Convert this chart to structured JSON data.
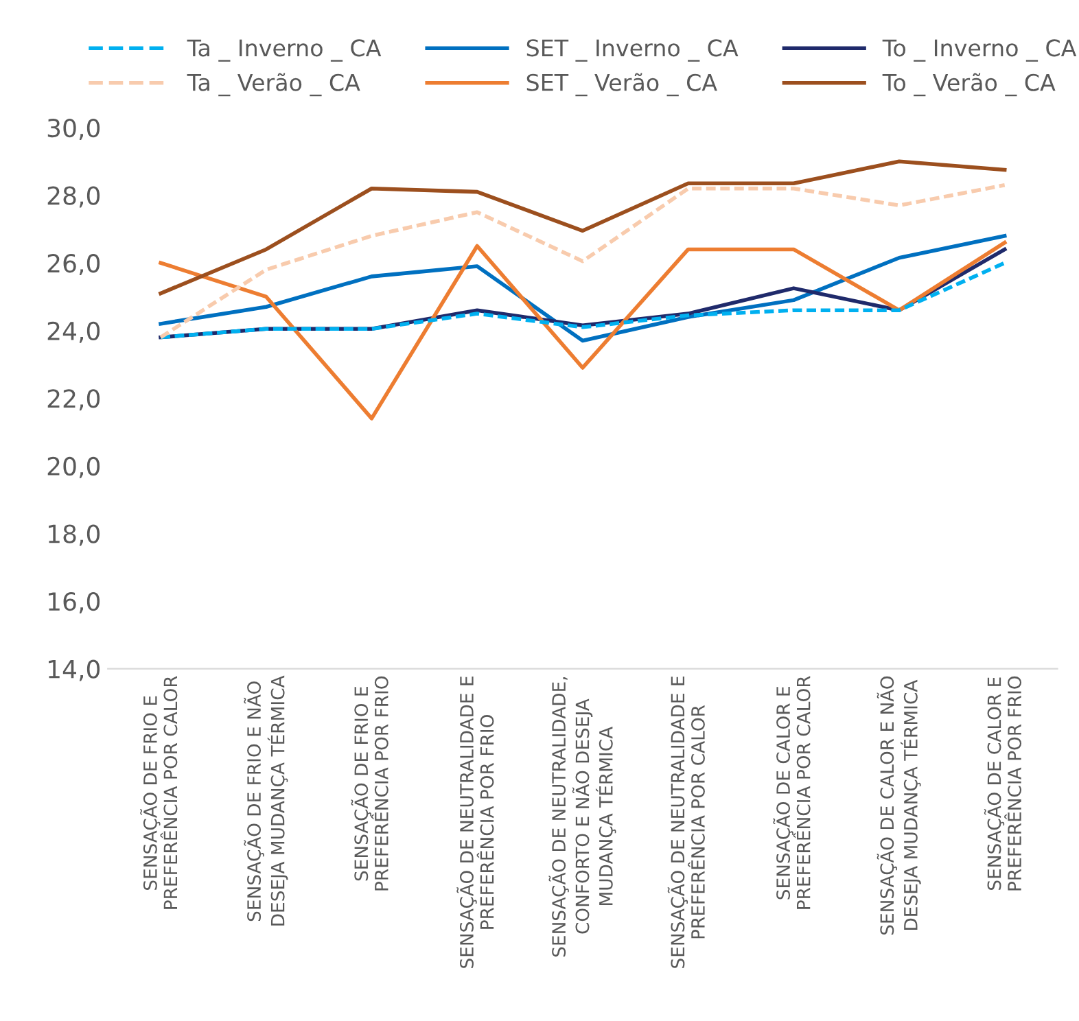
{
  "chart_data": {
    "type": "line",
    "categories": [
      "SENSAÇÃO DE FRIO E\nPREFERÊNCIA POR CALOR",
      "SENSAÇÃO DE FRIO E NÃO\nDESEJA MUDANÇA TÉRMICA",
      "SENSAÇÃO DE FRIO E\nPREFERÊNCIA POR FRIO",
      "SENSAÇÃO DE NEUTRALIDADE E\nPREFERÊNCIA POR FRIO",
      "SENSAÇÃO DE NEUTRALIDADE,\nCONFORTO E NÃO DESEJA\nMUDANÇA TÉRMICA",
      "SENSAÇÃO DE NEUTRALIDADE E\nPREFERÊNCIA POR CALOR",
      "SENSAÇÃO DE CALOR E\nPREFERÊNCIA POR CALOR",
      "SENSAÇÃO DE CALOR E NÃO\nDESEJA MUDANÇA TÉRMICA",
      "SENSAÇÃO DE CALOR E\nPREFERÊNCIA POR FRIO"
    ],
    "series": [
      {
        "name": "Ta _ Inverno _ CA",
        "color": "#00b0f0",
        "line_style": "dashed",
        "values": [
          23.8,
          24.05,
          24.05,
          24.5,
          24.1,
          24.45,
          24.6,
          24.6,
          26.0
        ]
      },
      {
        "name": "SET _ Inverno _ CA",
        "color": "#0070c0",
        "values": [
          24.2,
          24.7,
          25.6,
          25.9,
          23.7,
          24.4,
          24.9,
          26.15,
          26.8
        ]
      },
      {
        "name": "To _ Inverno _ CA",
        "color": "#1f2a6b",
        "values": [
          23.8,
          24.05,
          24.05,
          24.6,
          24.15,
          24.5,
          25.25,
          24.6,
          26.4
        ]
      },
      {
        "name": "Ta _ Verão _ CA",
        "color": "#f8cbad",
        "line_style": "dashed",
        "values": [
          23.8,
          25.8,
          26.8,
          27.5,
          26.05,
          28.2,
          28.2,
          27.7,
          28.3
        ]
      },
      {
        "name": "SET _ Verão _ CA",
        "color": "#ed7d31",
        "values": [
          26.0,
          25.0,
          21.4,
          26.5,
          22.9,
          26.4,
          26.4,
          24.6,
          26.6
        ]
      },
      {
        "name": "To _ Verão _ CA",
        "color": "#9c4f1e",
        "values": [
          25.1,
          26.4,
          28.2,
          28.1,
          26.95,
          28.35,
          28.35,
          29.0,
          28.75
        ]
      }
    ],
    "ylim": [
      14,
      30
    ],
    "yticks": [
      {
        "value": 14,
        "label": "14,0"
      },
      {
        "value": 16,
        "label": "16,0"
      },
      {
        "value": 18,
        "label": "18,0"
      },
      {
        "value": 20,
        "label": "20,0"
      },
      {
        "value": 22,
        "label": "22,0"
      },
      {
        "value": 24,
        "label": "24,0"
      },
      {
        "value": 26,
        "label": "26,0"
      },
      {
        "value": 28,
        "label": "28,0"
      },
      {
        "value": 30,
        "label": "30,0"
      }
    ],
    "legend": "top",
    "grid": false,
    "marker": "none",
    "line_style": "solid"
  }
}
